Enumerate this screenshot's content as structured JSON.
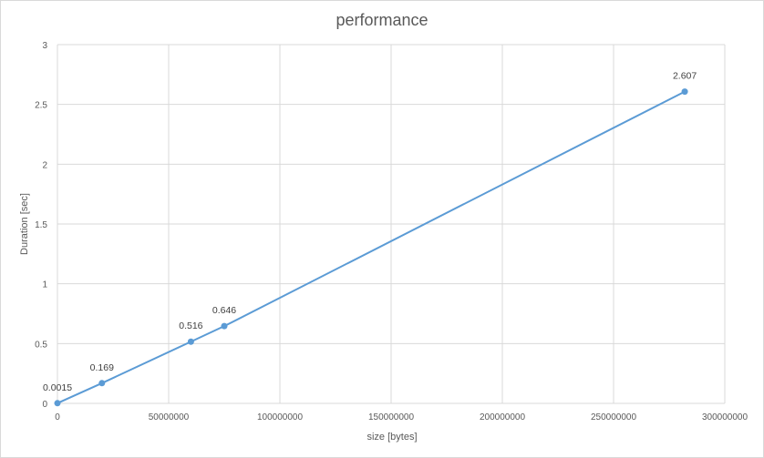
{
  "chart_data": {
    "type": "scatter",
    "title": "performance",
    "xlabel": "size [bytes]",
    "ylabel": "Duration [sec]",
    "xlim": [
      0,
      300000000
    ],
    "ylim": [
      0,
      3
    ],
    "x_ticks": [
      "0",
      "50000000",
      "100000000",
      "150000000",
      "200000000",
      "250000000",
      "300000000"
    ],
    "y_ticks": [
      "0",
      "0.5",
      "1",
      "1.5",
      "2",
      "2.5",
      "3"
    ],
    "grid": true,
    "legend": "none",
    "line_color": "#5b9bd5",
    "series": [
      {
        "x": [
          0,
          20000000,
          60000000,
          75000000,
          282000000
        ],
        "y": [
          0.0015,
          0.169,
          0.516,
          0.646,
          2.607
        ],
        "labels": [
          "0.0015",
          "0.169",
          "0.516",
          "0.646",
          "2.607"
        ]
      }
    ]
  }
}
